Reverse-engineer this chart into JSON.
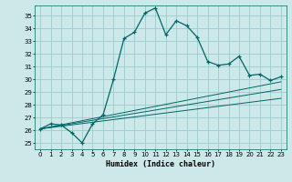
{
  "title": "",
  "xlabel": "Humidex (Indice chaleur)",
  "bg_color": "#cce8e8",
  "grid_color": "#99cccc",
  "line_color": "#006666",
  "xlim": [
    -0.5,
    23.5
  ],
  "ylim": [
    24.5,
    35.8
  ],
  "xticks": [
    0,
    1,
    2,
    3,
    4,
    5,
    6,
    7,
    8,
    9,
    10,
    11,
    12,
    13,
    14,
    15,
    16,
    17,
    18,
    19,
    20,
    21,
    22,
    23
  ],
  "yticks": [
    25,
    26,
    27,
    28,
    29,
    30,
    31,
    32,
    33,
    34,
    35
  ],
  "series1_x": [
    0,
    1,
    2,
    3,
    4,
    5,
    6,
    7,
    8,
    9,
    10,
    11,
    12,
    13,
    14,
    15,
    16,
    17,
    18,
    19,
    20,
    21,
    22,
    23
  ],
  "series1_y": [
    26.1,
    26.5,
    26.4,
    25.8,
    25.0,
    26.5,
    27.2,
    30.0,
    33.2,
    33.7,
    35.2,
    35.6,
    33.5,
    34.6,
    34.2,
    33.3,
    31.4,
    31.1,
    31.2,
    31.8,
    30.3,
    30.4,
    29.9,
    30.2
  ],
  "series2_x": [
    0,
    23
  ],
  "series2_y": [
    26.1,
    29.8
  ],
  "series3_x": [
    0,
    23
  ],
  "series3_y": [
    26.1,
    28.5
  ],
  "series4_x": [
    0,
    23
  ],
  "series4_y": [
    26.1,
    29.2
  ]
}
